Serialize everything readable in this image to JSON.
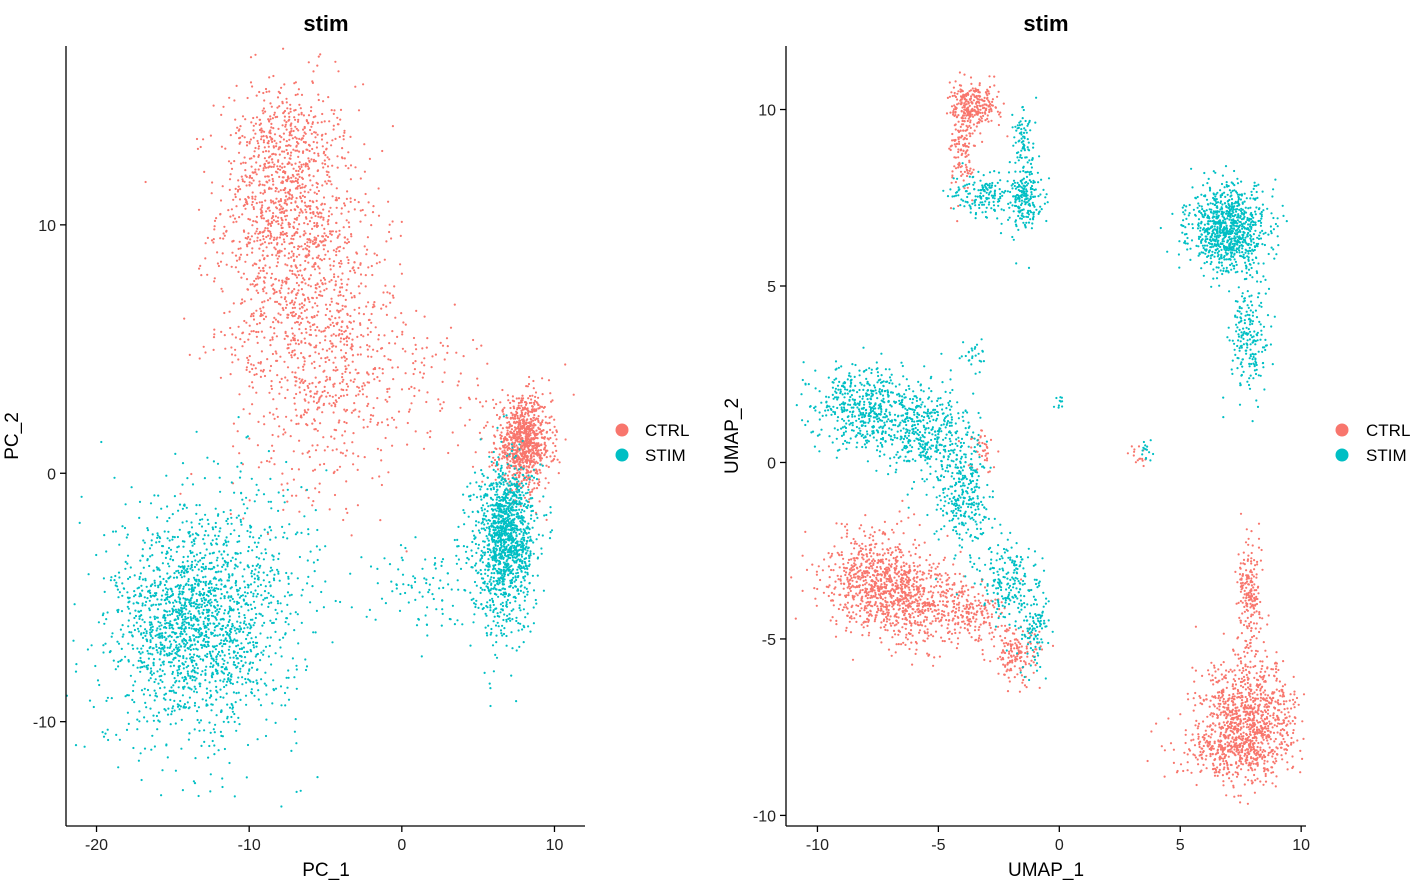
{
  "colors": {
    "CTRL": "#F8766D",
    "STIM": "#00BFC4"
  },
  "chart_data": [
    {
      "type": "scatter",
      "title": "stim",
      "xlabel": "PC_1",
      "ylabel": "PC_2",
      "xlim": [
        -22,
        12
      ],
      "ylim": [
        -14.2,
        17.2
      ],
      "xticks": [
        -20,
        -10,
        0,
        10
      ],
      "xtick_labels": [
        "-20",
        "-10",
        "0",
        "10"
      ],
      "yticks": [
        -10,
        0,
        10
      ],
      "ytick_labels": [
        "-10",
        "0",
        "10"
      ],
      "legend": {
        "position": "right",
        "entries": [
          "CTRL",
          "STIM"
        ]
      },
      "series": [
        {
          "name": "CTRL",
          "clusters": [
            {
              "cx": -7.5,
              "cy": 10.5,
              "sx": 2.3,
              "sy": 2.6,
              "n": 900
            },
            {
              "cx": -5.5,
              "cy": 5.5,
              "sx": 2.8,
              "sy": 3.0,
              "n": 900
            },
            {
              "cx": -8.0,
              "cy": 13.0,
              "sx": 1.4,
              "sy": 1.4,
              "n": 250
            },
            {
              "cx": 1.0,
              "cy": 3.5,
              "sx": 3.5,
              "sy": 1.5,
              "n": 120
            },
            {
              "cx": 8.0,
              "cy": 1.2,
              "sx": 0.9,
              "sy": 0.9,
              "n": 900
            }
          ]
        },
        {
          "name": "STIM",
          "clusters": [
            {
              "cx": -14.0,
              "cy": -6.3,
              "sx": 2.2,
              "sy": 1.8,
              "n": 900
            },
            {
              "cx": -13.0,
              "cy": -6.0,
              "sx": 3.2,
              "sy": 2.5,
              "n": 900
            },
            {
              "cx": -10.0,
              "cy": -3.5,
              "sx": 3.0,
              "sy": 2.2,
              "n": 200
            },
            {
              "cx": 6.5,
              "cy": -3.0,
              "sx": 1.0,
              "sy": 1.8,
              "n": 800
            },
            {
              "cx": 7.2,
              "cy": -2.2,
              "sx": 0.8,
              "sy": 1.2,
              "n": 500
            },
            {
              "cx": 1.5,
              "cy": -4.5,
              "sx": 1.8,
              "sy": 1.0,
              "n": 100
            }
          ]
        }
      ]
    },
    {
      "type": "scatter",
      "title": "stim",
      "xlabel": "UMAP_1",
      "ylabel": "UMAP_2",
      "xlim": [
        -11.3,
        10.2
      ],
      "ylim": [
        -10.3,
        11.8
      ],
      "xticks": [
        -10,
        -5,
        0,
        5,
        10
      ],
      "xtick_labels": [
        "-10",
        "-5",
        "0",
        "5",
        "10"
      ],
      "yticks": [
        -10,
        -5,
        0,
        5,
        10
      ],
      "ytick_labels": [
        "-10",
        "-5",
        "0",
        "5",
        "10"
      ],
      "legend": {
        "position": "right",
        "entries": [
          "CTRL",
          "STIM"
        ]
      },
      "series": [
        {
          "name": "CTRL",
          "clusters": [
            {
              "cx": -3.5,
              "cy": 10.1,
              "sx": 0.5,
              "sy": 0.3,
              "n": 250
            },
            {
              "cx": -4.0,
              "cy": 9.0,
              "sx": 0.25,
              "sy": 0.7,
              "n": 150
            },
            {
              "cx": -7.5,
              "cy": -3.3,
              "sx": 1.1,
              "sy": 0.7,
              "n": 700
            },
            {
              "cx": -6.0,
              "cy": -4.0,
              "sx": 1.0,
              "sy": 0.6,
              "n": 400
            },
            {
              "cx": -3.8,
              "cy": -4.3,
              "sx": 0.8,
              "sy": 0.4,
              "n": 200
            },
            {
              "cx": -1.8,
              "cy": -5.5,
              "sx": 0.5,
              "sy": 0.4,
              "n": 150
            },
            {
              "cx": -3.2,
              "cy": 0.3,
              "sx": 0.3,
              "sy": 0.3,
              "n": 40
            },
            {
              "cx": 7.8,
              "cy": -7.2,
              "sx": 1.0,
              "sy": 0.8,
              "n": 900
            },
            {
              "cx": 7.4,
              "cy": -8.2,
              "sx": 1.2,
              "sy": 0.4,
              "n": 300
            },
            {
              "cx": 7.9,
              "cy": -3.8,
              "sx": 0.25,
              "sy": 0.8,
              "n": 200
            },
            {
              "cx": 3.2,
              "cy": 0.2,
              "sx": 0.15,
              "sy": 0.15,
              "n": 15
            }
          ]
        },
        {
          "name": "STIM",
          "clusters": [
            {
              "cx": -1.4,
              "cy": 7.5,
              "sx": 0.35,
              "sy": 0.5,
              "n": 200
            },
            {
              "cx": -3.2,
              "cy": 7.6,
              "sx": 0.6,
              "sy": 0.3,
              "n": 150
            },
            {
              "cx": -1.5,
              "cy": 9.0,
              "sx": 0.25,
              "sy": 0.6,
              "n": 80
            },
            {
              "cx": 7.0,
              "cy": 6.6,
              "sx": 0.8,
              "sy": 0.6,
              "n": 900
            },
            {
              "cx": 7.8,
              "cy": 3.5,
              "sx": 0.4,
              "sy": 0.8,
              "n": 200
            },
            {
              "cx": -8.0,
              "cy": 1.6,
              "sx": 1.0,
              "sy": 0.6,
              "n": 500
            },
            {
              "cx": -5.5,
              "cy": 0.8,
              "sx": 0.9,
              "sy": 0.7,
              "n": 400
            },
            {
              "cx": -4.0,
              "cy": -1.0,
              "sx": 0.6,
              "sy": 0.8,
              "n": 300
            },
            {
              "cx": -2.0,
              "cy": -3.5,
              "sx": 0.6,
              "sy": 0.6,
              "n": 200
            },
            {
              "cx": -1.0,
              "cy": -4.8,
              "sx": 0.3,
              "sy": 0.5,
              "n": 100
            },
            {
              "cx": -3.5,
              "cy": 3.0,
              "sx": 0.25,
              "sy": 0.3,
              "n": 25
            },
            {
              "cx": 3.6,
              "cy": 0.4,
              "sx": 0.15,
              "sy": 0.15,
              "n": 15
            },
            {
              "cx": 0.0,
              "cy": 1.7,
              "sx": 0.1,
              "sy": 0.1,
              "n": 10
            }
          ]
        }
      ]
    }
  ]
}
